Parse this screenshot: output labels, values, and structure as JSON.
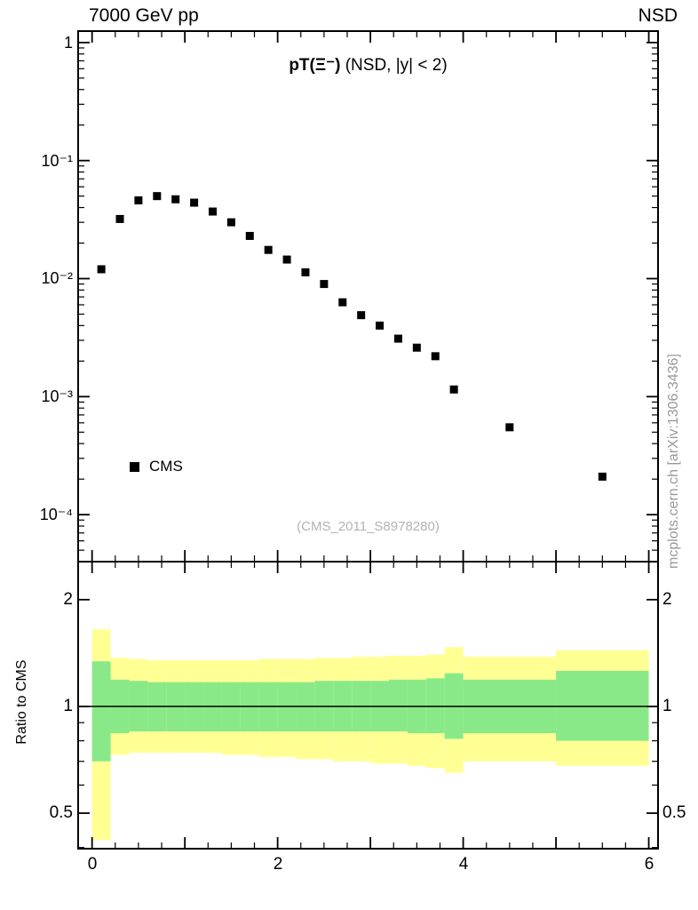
{
  "header": {
    "left": "7000 GeV pp",
    "right": "NSD"
  },
  "main_plot": {
    "title_main": "pT(Ξ⁻)",
    "title_suffix": " (NSD, |y| < 2)",
    "legend": [
      {
        "label": "CMS",
        "marker": "filled-square",
        "color": "#000000"
      }
    ],
    "watermark": "(CMS_2011_S8978280)",
    "side_note": "mcplots.cern.ch [arXiv:1306.3436]"
  },
  "ratio_plot": {
    "ylabel": "Ratio to CMS"
  },
  "chart_data": [
    {
      "id": "pt-spectrum",
      "type": "scatter",
      "title": "pT(Ξ⁻) (NSD, |y| < 2)",
      "xlabel": "",
      "ylabel": "",
      "xscale": "linear",
      "yscale": "log",
      "grid": false,
      "xlim": [
        -0.15,
        6.1
      ],
      "ylim": [
        4e-05,
        1.25
      ],
      "xticks_major": [
        0,
        1,
        2,
        3,
        4,
        5,
        6
      ],
      "xtick_minor_step": 0.25,
      "xtick_labels": [
        {
          "value": 0,
          "label": "0"
        },
        {
          "value": 2,
          "label": "2"
        },
        {
          "value": 4,
          "label": "4"
        },
        {
          "value": 6,
          "label": "6"
        }
      ],
      "ytick_labels": [
        {
          "value": 1,
          "label": "1"
        },
        {
          "value": 0.1,
          "label": "10⁻¹"
        },
        {
          "value": 0.01,
          "label": "10⁻²"
        },
        {
          "value": 0.001,
          "label": "10⁻³"
        },
        {
          "value": 0.0001,
          "label": "10⁻⁴"
        }
      ],
      "series": [
        {
          "name": "CMS",
          "marker": "square",
          "color": "#000000",
          "x": [
            0.1,
            0.3,
            0.5,
            0.7,
            0.9,
            1.1,
            1.3,
            1.5,
            1.7,
            1.9,
            2.1,
            2.3,
            2.5,
            2.7,
            2.9,
            3.1,
            3.3,
            3.5,
            3.7,
            3.9,
            4.5,
            5.5
          ],
          "y": [
            0.012,
            0.032,
            0.046,
            0.05,
            0.047,
            0.044,
            0.037,
            0.03,
            0.023,
            0.0175,
            0.0145,
            0.0113,
            0.009,
            0.0063,
            0.0049,
            0.004,
            0.0031,
            0.0026,
            0.0022,
            0.00115,
            0.00055,
            0.00021
          ]
        }
      ]
    },
    {
      "id": "ratio-to-cms",
      "type": "band",
      "ylabel": "Ratio to CMS",
      "yscale": "log",
      "xlim": [
        -0.15,
        6.1
      ],
      "ylim": [
        0.397,
        2.56
      ],
      "reference_line": 1.0,
      "yticks_major": [
        0.5,
        1,
        2
      ],
      "yticks_minor": [
        0.4,
        0.6,
        0.7,
        0.8,
        0.9
      ],
      "ytick_labels": [
        {
          "value": 2,
          "label": "2"
        },
        {
          "value": 1,
          "label": "1"
        },
        {
          "value": 0.5,
          "label": "0.5"
        }
      ],
      "band_colors": {
        "outer": "#ffff94",
        "inner": "#89e989"
      },
      "bins": {
        "edges": [
          0.0,
          0.2,
          0.4,
          0.6,
          0.8,
          1.0,
          1.2,
          1.4,
          1.6,
          1.8,
          2.0,
          2.2,
          2.4,
          2.6,
          2.8,
          3.0,
          3.2,
          3.4,
          3.6,
          3.8,
          4.0,
          5.0,
          6.0
        ],
        "outer_lo": [
          0.42,
          0.73,
          0.74,
          0.74,
          0.74,
          0.74,
          0.74,
          0.73,
          0.73,
          0.72,
          0.72,
          0.71,
          0.71,
          0.7,
          0.7,
          0.69,
          0.69,
          0.68,
          0.67,
          0.65,
          0.7,
          0.68
        ],
        "outer_hi": [
          1.65,
          1.37,
          1.36,
          1.35,
          1.35,
          1.35,
          1.35,
          1.35,
          1.35,
          1.36,
          1.36,
          1.36,
          1.37,
          1.37,
          1.38,
          1.38,
          1.39,
          1.39,
          1.4,
          1.47,
          1.38,
          1.44
        ],
        "inner_lo": [
          0.7,
          0.84,
          0.85,
          0.85,
          0.85,
          0.85,
          0.85,
          0.85,
          0.85,
          0.85,
          0.85,
          0.85,
          0.85,
          0.85,
          0.85,
          0.85,
          0.85,
          0.84,
          0.84,
          0.81,
          0.84,
          0.8
        ],
        "inner_hi": [
          1.34,
          1.19,
          1.18,
          1.17,
          1.17,
          1.17,
          1.17,
          1.17,
          1.17,
          1.17,
          1.17,
          1.17,
          1.18,
          1.18,
          1.18,
          1.18,
          1.19,
          1.19,
          1.2,
          1.24,
          1.19,
          1.26
        ]
      }
    }
  ]
}
